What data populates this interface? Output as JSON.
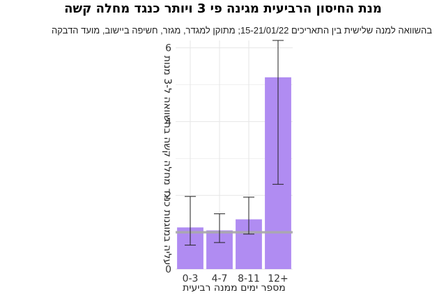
{
  "title": "מנת החיסון הרביעית מגינה פי 3 ויותר כנגד מחלה קשה",
  "subtitle": "בהשוואה למנה שלישית בין התאריכים 15-21/01/22; מתוקן למגדר, מגזר, חשיפה ביישוב, מועד הדבקה",
  "chart_data": {
    "type": "bar",
    "categories": [
      "0-3",
      "4-7",
      "8-11",
      "12+"
    ],
    "values": [
      1.13,
      1.05,
      1.35,
      5.2
    ],
    "error_low": [
      0.65,
      0.72,
      0.95,
      2.3
    ],
    "error_high": [
      1.97,
      1.5,
      1.95,
      6.2
    ],
    "reference_line": 1,
    "xlabel": "מספר ימים ממנה רביעית",
    "ylabel": "עליה במוגנות כנגד מחלה קשה בהשוואה ל-3 מנות",
    "ylim": [
      0,
      6.2
    ],
    "yticks": [
      0,
      2,
      4,
      6
    ],
    "grid": true,
    "colors": {
      "bar": "#b08cf2",
      "reference": "#aaaaaa",
      "grid": "#e6e6e6",
      "error_bar": "#222222"
    }
  }
}
